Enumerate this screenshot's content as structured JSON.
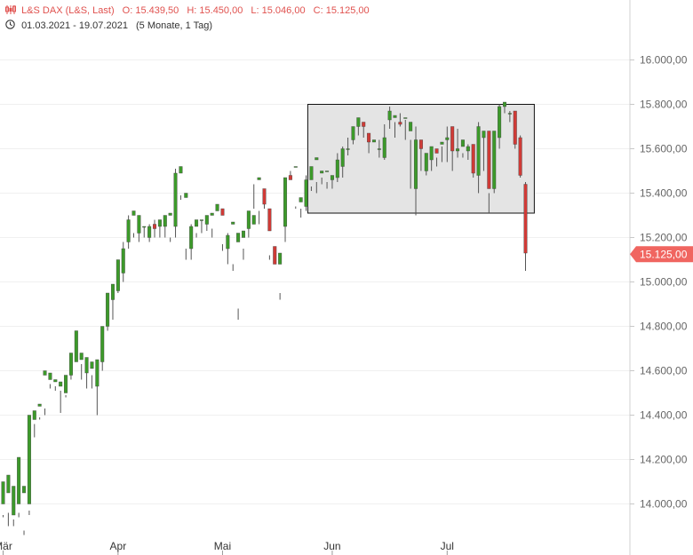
{
  "header": {
    "instrument": "L&S DAX (L&S, Last)",
    "open": "O: 15.439,50",
    "high": "H: 15.450,00",
    "low": "L: 15.046,00",
    "close": "C: 15.125,00",
    "range": "01.03.2021 - 19.07.2021",
    "span": "(5 Monate, 1 Tag)"
  },
  "colors": {
    "up": "#3c9a2a",
    "down": "#d03a36",
    "wick": "#555555",
    "box_fill": "#e4e4e4",
    "last_badge": "#f06560",
    "header_text": "#e0524f"
  },
  "icons": {
    "header": "candlestick-icon",
    "range": "clock-icon"
  },
  "chart_data": {
    "type": "candlestick",
    "ylim": [
      13870,
      16230
    ],
    "y_ticks": [
      {
        "value": 14000,
        "label": "14.000,00"
      },
      {
        "value": 14200,
        "label": "14.200,00"
      },
      {
        "value": 14400,
        "label": "14.400,00"
      },
      {
        "value": 14600,
        "label": "14.600,00"
      },
      {
        "value": 14800,
        "label": "14.800,00"
      },
      {
        "value": 15000,
        "label": "15.000,00"
      },
      {
        "value": 15200,
        "label": "15.200,00"
      },
      {
        "value": 15400,
        "label": "15.400,00"
      },
      {
        "value": 15600,
        "label": "15.600,00"
      },
      {
        "value": 15800,
        "label": "15.800,00"
      },
      {
        "value": 16000,
        "label": "16.000,00"
      }
    ],
    "x_ticks": [
      {
        "index": 0,
        "label": "Mär"
      },
      {
        "index": 22,
        "label": "Apr"
      },
      {
        "index": 42,
        "label": "Mai"
      },
      {
        "index": 63,
        "label": "Jun"
      },
      {
        "index": 85,
        "label": "Jul"
      }
    ],
    "last_price": {
      "value": 15125,
      "label": "15.125,00"
    },
    "range_box": {
      "start_index": 59,
      "end_index": 101,
      "high": 15800,
      "low": 15310
    },
    "candles": [
      [
        14000,
        14100,
        13950,
        13940
      ],
      [
        14050,
        14130,
        13900,
        13960
      ],
      [
        13950,
        14080,
        13930,
        13900
      ],
      [
        14000,
        14210,
        13960,
        13940
      ],
      [
        14050,
        14080,
        13880,
        13860
      ],
      [
        14000,
        14400,
        13970,
        13950
      ],
      [
        14380,
        14420,
        14360,
        14300
      ],
      [
        14440,
        14450,
        14390,
        14380
      ],
      [
        14580,
        14600,
        14430,
        14400
      ],
      [
        14560,
        14590,
        14540,
        14520
      ],
      [
        14550,
        14560,
        14530,
        14510
      ],
      [
        14530,
        14550,
        14510,
        14410
      ],
      [
        14500,
        14580,
        14490,
        14480
      ],
      [
        14580,
        14680,
        14590,
        14560
      ],
      [
        14640,
        14780,
        14660,
        14690
      ],
      [
        14650,
        14680,
        14630,
        14560
      ],
      [
        14590,
        14660,
        14610,
        14520
      ],
      [
        14610,
        14640,
        14580,
        14520
      ],
      [
        14530,
        14650,
        14650,
        14400
      ],
      [
        14640,
        14800,
        14800,
        14600
      ],
      [
        14800,
        14950,
        14920,
        14780
      ],
      [
        14920,
        14990,
        14950,
        14830
      ],
      [
        14960,
        15100,
        15020,
        14950
      ],
      [
        15040,
        15150,
        15180,
        15000
      ],
      [
        15180,
        15280,
        15300,
        15150
      ],
      [
        15300,
        15320,
        15220,
        15200
      ],
      [
        15220,
        15300,
        15250,
        15180
      ],
      [
        15250,
        15250,
        15250,
        15200
      ],
      [
        15200,
        15250,
        15260,
        15180
      ],
      [
        15260,
        15240,
        15280,
        15200
      ],
      [
        15250,
        15280,
        15280,
        15200
      ],
      [
        15250,
        15300,
        15290,
        15200
      ],
      [
        15300,
        15310,
        15200,
        15180
      ],
      [
        15250,
        15490,
        15510,
        15200
      ],
      [
        15490,
        15520,
        15390,
        15370
      ],
      [
        15380,
        15400,
        15150,
        15100
      ],
      [
        15150,
        15250,
        15260,
        15100
      ],
      [
        15250,
        15280,
        15220,
        15200
      ],
      [
        15280,
        15280,
        15280,
        15220
      ],
      [
        15260,
        15300,
        15280,
        15230
      ],
      [
        15300,
        15310,
        15240,
        15200
      ],
      [
        15320,
        15350,
        15300,
        15300
      ],
      [
        15330,
        15300,
        15170,
        15140
      ],
      [
        15150,
        15210,
        15220,
        15080
      ],
      [
        15260,
        15270,
        15080,
        15050
      ],
      [
        15180,
        15220,
        14880,
        14830
      ],
      [
        15200,
        15230,
        15150,
        15100
      ],
      [
        15240,
        15320,
        15260,
        15200
      ],
      [
        15260,
        15300,
        15440,
        15330
      ],
      [
        15460,
        15470,
        15320,
        15260
      ],
      [
        15420,
        15350,
        15360,
        15330
      ],
      [
        15330,
        15230,
        15120,
        15100
      ],
      [
        15160,
        15080,
        15030,
        15030
      ],
      [
        15080,
        15130,
        14950,
        14920
      ],
      [
        15250,
        15470,
        15370,
        15180
      ],
      [
        15480,
        15460,
        15500,
        15480
      ],
      [
        15520,
        15520,
        15340,
        15330
      ],
      [
        15360,
        15380,
        15330,
        15290
      ],
      [
        15340,
        15460,
        15480,
        15320
      ],
      [
        15460,
        15520,
        15430,
        15410
      ],
      [
        15550,
        15560,
        15450,
        15400
      ],
      [
        15490,
        15500,
        15470,
        15440
      ],
      [
        15500,
        15500,
        15450,
        15420
      ],
      [
        15460,
        15480,
        15480,
        15420
      ],
      [
        15470,
        15550,
        15580,
        15450
      ],
      [
        15520,
        15600,
        15610,
        15470
      ],
      [
        15600,
        15600,
        15650,
        15570
      ],
      [
        15640,
        15700,
        15690,
        15620
      ],
      [
        15700,
        15740,
        15740,
        15660
      ],
      [
        15720,
        15700,
        15720,
        15650
      ],
      [
        15670,
        15630,
        15640,
        15580
      ],
      [
        15630,
        15640,
        15560,
        15560
      ],
      [
        15600,
        15600,
        15640,
        15560
      ],
      [
        15560,
        15650,
        15710,
        15550
      ],
      [
        15730,
        15770,
        15790,
        15690
      ],
      [
        15740,
        15750,
        15720,
        15650
      ],
      [
        15720,
        15710,
        15760,
        15700
      ],
      [
        15740,
        15740,
        15730,
        15640
      ],
      [
        15680,
        15720,
        15640,
        15420
      ],
      [
        15420,
        15640,
        15700,
        15300
      ],
      [
        15640,
        15600,
        15640,
        15500
      ],
      [
        15500,
        15580,
        15520,
        15480
      ],
      [
        15550,
        15610,
        15600,
        15500
      ],
      [
        15600,
        15580,
        15560,
        15520
      ],
      [
        15620,
        15630,
        15610,
        15540
      ],
      [
        15640,
        15650,
        15700,
        15540
      ],
      [
        15700,
        15590,
        15600,
        15500
      ],
      [
        15590,
        15600,
        15690,
        15560
      ],
      [
        15610,
        15640,
        15580,
        15560
      ],
      [
        15590,
        15610,
        15620,
        15550
      ],
      [
        15620,
        15490,
        15510,
        15470
      ],
      [
        15480,
        15700,
        15720,
        15400
      ],
      [
        15650,
        15680,
        15680,
        15500
      ],
      [
        15680,
        15420,
        15400,
        15310
      ],
      [
        15420,
        15680,
        15680,
        15400
      ],
      [
        15650,
        15790,
        15800,
        15600
      ],
      [
        15790,
        15810,
        15790,
        15760
      ],
      [
        15760,
        15760,
        15770,
        15720
      ],
      [
        15770,
        15620,
        15760,
        15600
      ],
      [
        15650,
        15480,
        15660,
        15470
      ],
      [
        15440,
        15130,
        15450,
        15050
      ]
    ]
  }
}
